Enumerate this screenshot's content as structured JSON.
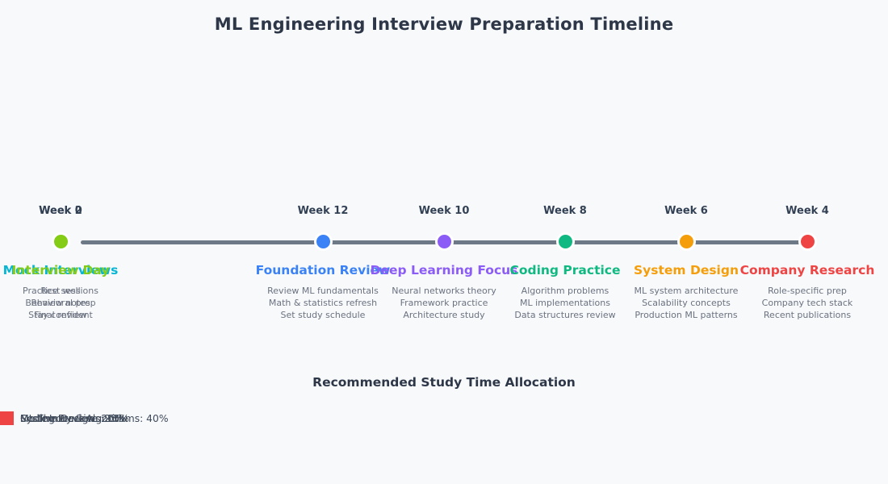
{
  "title": "ML Engineering Interview Preparation Timeline",
  "background_color": "#f8f9fb",
  "timeline": {
    "line_color": "#6e7987",
    "milestones": [
      {
        "week": "Week 12",
        "title": "Foundation Review",
        "color": "#3b82f6",
        "items": [
          "Review ML fundamentals",
          "Math & statistics refresh",
          "Set study schedule"
        ]
      },
      {
        "week": "Week 10",
        "title": "Deep Learning Focus",
        "color": "#8b5cf6",
        "items": [
          "Neural networks theory",
          "Framework practice",
          "Architecture study"
        ]
      },
      {
        "week": "Week 8",
        "title": "Coding Practice",
        "color": "#10b981",
        "items": [
          "Algorithm problems",
          "ML implementations",
          "Data structures review"
        ]
      },
      {
        "week": "Week 6",
        "title": "System Design",
        "color": "#f59e0b",
        "items": [
          "ML system architecture",
          "Scalability concepts",
          "Production ML patterns"
        ]
      },
      {
        "week": "Week 4",
        "title": "Company Research",
        "color": "#ef4444",
        "items": [
          "Role-specific prep",
          "Company tech stack",
          "Recent publications"
        ]
      },
      {
        "week": "Week 2",
        "title": "Mock Interviews",
        "color": "#06b6d4",
        "items": [
          "Practice sessions",
          "Behavioral prep",
          "Final review"
        ]
      },
      {
        "week": "Week 0",
        "title": "Interview Day",
        "color": "#84cc16",
        "items": [
          "Rest well",
          "Review notes",
          "Stay confident"
        ]
      }
    ]
  },
  "legend": {
    "title": "Recommended Study Time Allocation",
    "items": [
      {
        "label": "ML Theory & Algorithms: 40%",
        "color": "#3b82f6"
      },
      {
        "label": "Coding Practice: 25%",
        "color": "#10b981"
      },
      {
        "label": "System Design: 20%",
        "color": "#f59e0b"
      },
      {
        "label": "Mock Interviews: 15%",
        "color": "#ef4444"
      }
    ]
  }
}
